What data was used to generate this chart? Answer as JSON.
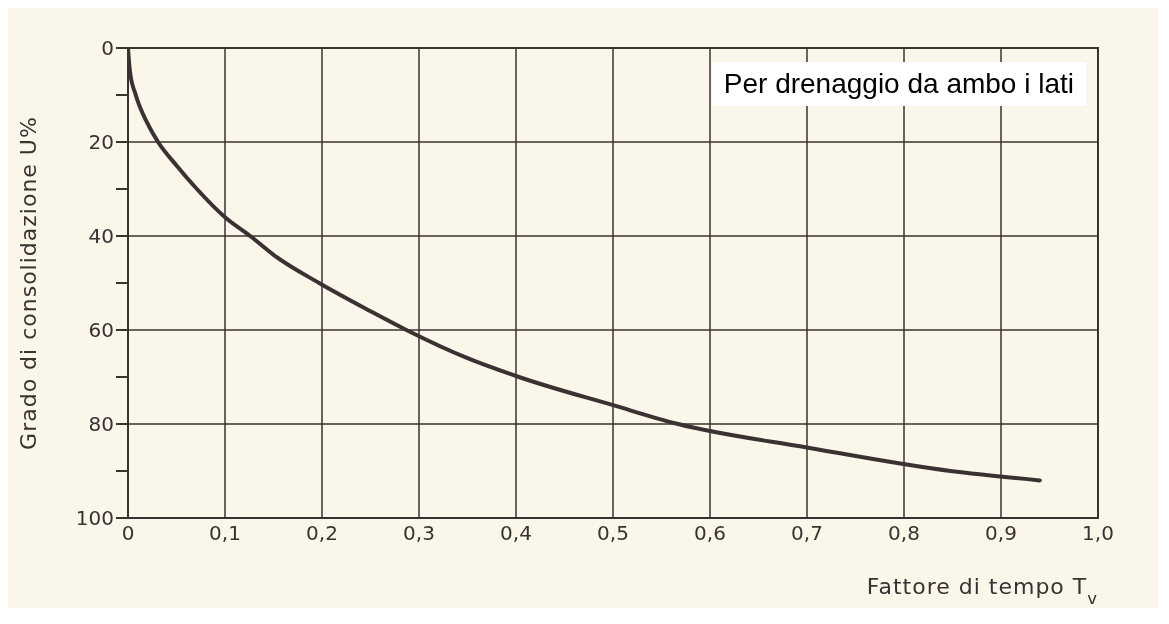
{
  "chart_data": {
    "type": "line",
    "xlabel": "Fattore di tempo T$_{v}$",
    "ylabel": "Grado di consolidazione U%",
    "annotations": [
      "Per drenaggio da ambo i lati"
    ],
    "x": [
      0,
      0.002,
      0.008,
      0.02,
      0.031,
      0.05,
      0.071,
      0.1,
      0.126,
      0.15,
      0.197,
      0.25,
      0.287,
      0.35,
      0.403,
      0.5,
      0.567,
      0.7,
      0.848,
      0.94
    ],
    "series": [
      {
        "color": "#3a3232",
        "values": [
          0,
          5,
          10,
          16,
          20,
          25,
          30,
          36,
          40,
          44,
          50,
          56,
          60,
          66,
          70,
          76,
          80,
          85,
          90,
          92
        ]
      }
    ],
    "xlim": [
      0,
      1
    ],
    "xticks": [
      0,
      {
        "value": 0.1,
        "label": "0,1"
      },
      {
        "value": 0.2,
        "label": "0,2"
      },
      {
        "value": 0.3,
        "label": "0,3"
      },
      {
        "value": 0.4,
        "label": "0,4"
      },
      {
        "value": 0.5,
        "label": "0,5"
      },
      {
        "value": 0.6,
        "label": "0,6"
      },
      {
        "value": 0.7,
        "label": "0,7"
      },
      {
        "value": 0.8,
        "label": "0,8"
      },
      {
        "value": 0.9,
        "label": "0,9"
      },
      {
        "value": 1,
        "label": "1,0"
      }
    ],
    "ylim": [
      100,
      0
    ],
    "yticks": [
      0,
      {
        "value": 10,
        "label": null
      },
      20,
      {
        "value": 30,
        "label": null
      },
      40,
      {
        "value": 50,
        "label": null
      },
      60,
      {
        "value": 70,
        "label": null
      },
      80,
      {
        "value": 90,
        "label": null
      },
      100
    ],
    "grid": true,
    "marker": "none",
    "line_style": "solid"
  }
}
